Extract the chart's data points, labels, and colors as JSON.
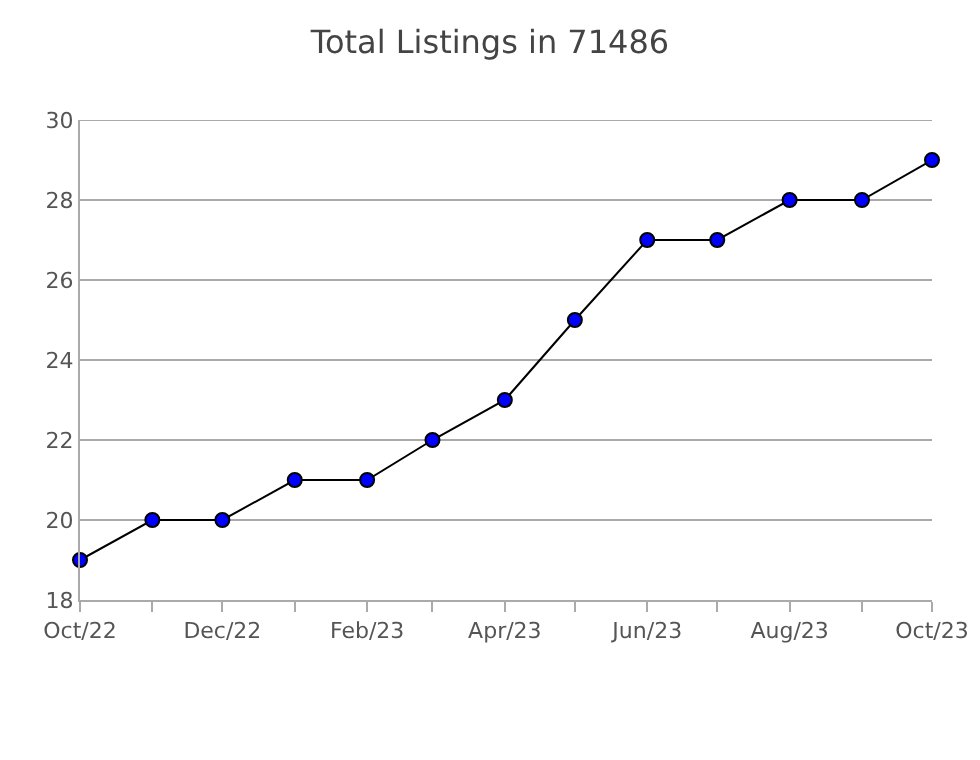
{
  "chart_data": {
    "type": "line",
    "title": "Total Listings in 71486",
    "x": [
      "2022-10",
      "2022-11",
      "2022-12",
      "2023-01",
      "2023-02",
      "2023-03",
      "2023-04",
      "2023-05",
      "2023-06",
      "2023-07",
      "2023-08",
      "2023-09",
      "2023-10"
    ],
    "series": [
      {
        "color": "#0000ff",
        "values": [
          19,
          20,
          20,
          21,
          21,
          22,
          23,
          25,
          27,
          27,
          28,
          28,
          29
        ]
      }
    ],
    "xlim": [
      "2022-10",
      "2023-10"
    ],
    "xticks": [
      {
        "value": "2022-10",
        "label": "Oct/22"
      },
      {
        "value": "2022-11",
        "label": null
      },
      {
        "value": "2022-12",
        "label": "Dec/22"
      },
      {
        "value": "2023-01",
        "label": null
      },
      {
        "value": "2023-02",
        "label": "Feb/23"
      },
      {
        "value": "2023-03",
        "label": null
      },
      {
        "value": "2023-04",
        "label": "Apr/23"
      },
      {
        "value": "2023-05",
        "label": null
      },
      {
        "value": "2023-06",
        "label": "Jun/23"
      },
      {
        "value": "2023-07",
        "label": null
      },
      {
        "value": "2023-08",
        "label": "Aug/23"
      },
      {
        "value": "2023-09",
        "label": null
      },
      {
        "value": "2023-10",
        "label": "Oct/23"
      }
    ],
    "ylim": [
      18,
      30
    ],
    "yticks": [
      18,
      20,
      22,
      24,
      26,
      28,
      30
    ],
    "grid": "y",
    "marker": "circle",
    "line_style": "solid"
  }
}
